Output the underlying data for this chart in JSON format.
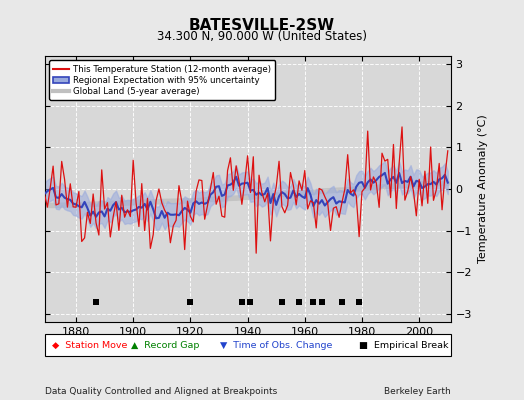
{
  "title": "BATESVILLE-2SW",
  "subtitle": "34.300 N, 90.000 W (United States)",
  "ylabel": "Temperature Anomaly (°C)",
  "xlabel_left": "Data Quality Controlled and Aligned at Breakpoints",
  "xlabel_right": "Berkeley Earth",
  "year_start": 1869,
  "year_end": 2011,
  "ylim": [
    -3.2,
    3.2
  ],
  "yticks": [
    -3,
    -2,
    -1,
    0,
    1,
    2,
    3
  ],
  "xticks": [
    1880,
    1900,
    1920,
    1940,
    1960,
    1980,
    2000
  ],
  "bg_color": "#e8e8e8",
  "plot_bg_color": "#d8d8d8",
  "grid_color": "#ffffff",
  "empirical_break_years": [
    1887,
    1920,
    1938,
    1941,
    1952,
    1958,
    1963,
    1966,
    1973,
    1979
  ],
  "time_obs_change_years": [],
  "station_move_years": [],
  "record_gap_years": [],
  "seed": 42
}
